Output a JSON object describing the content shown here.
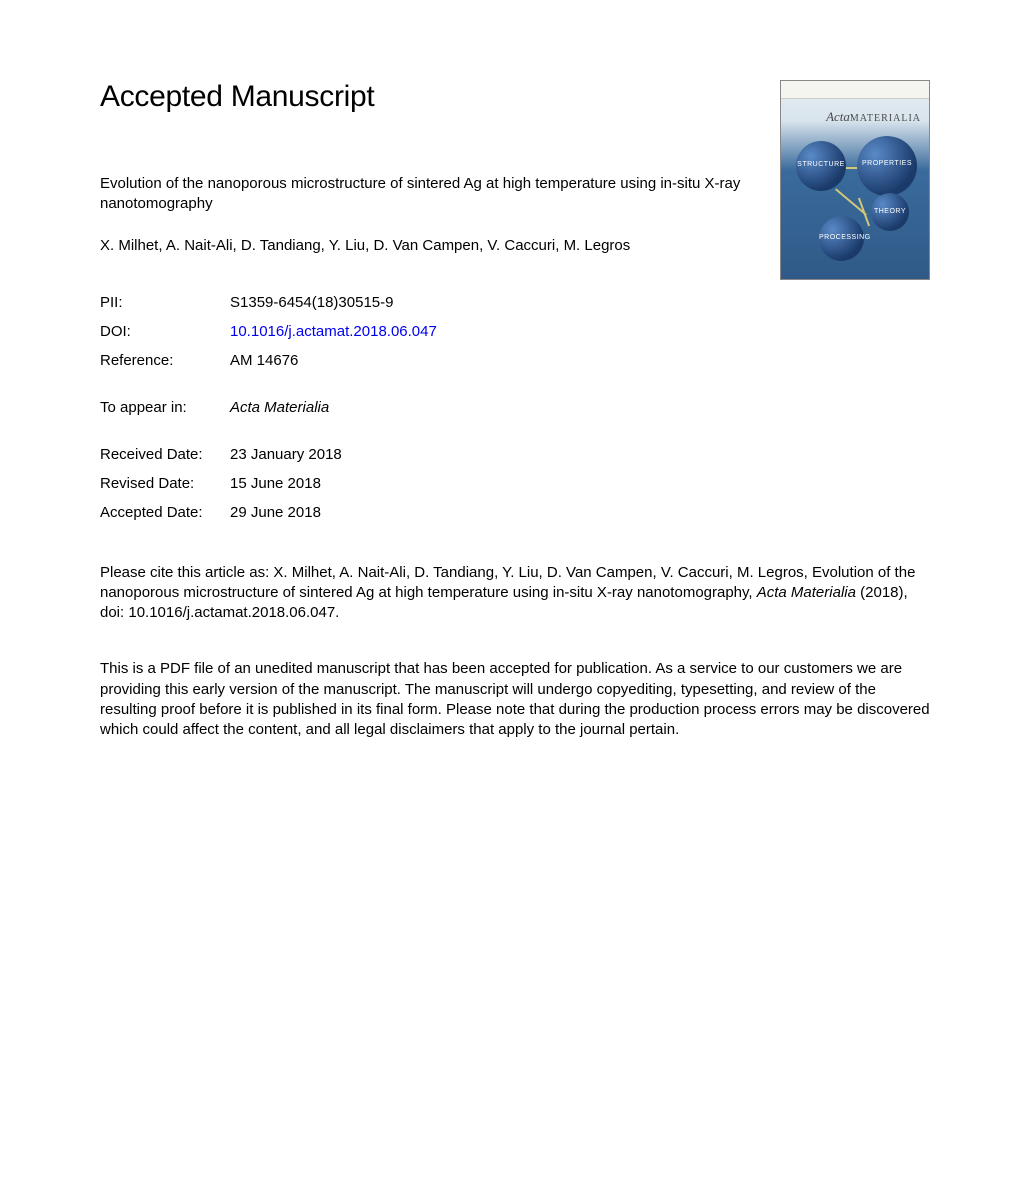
{
  "page": {
    "background_color": "#ffffff",
    "text_color": "#000000",
    "link_color": "#0000ee",
    "font_family": "Arial, Helvetica, sans-serif",
    "base_fontsize": 15
  },
  "heading": "Accepted Manuscript",
  "heading_fontsize": 30,
  "cover": {
    "journal_logo_text": "Acta",
    "journal_logo_sub": "MATERIALIA",
    "sphere_labels": [
      "STRUCTURE",
      "PROPERTIES",
      "THEORY",
      "PROCESSING"
    ],
    "gradient_top": "#e8eef2",
    "gradient_bottom": "#2f5a88",
    "sphere_color": "#1a3a6a",
    "connector_color": "#d0c878"
  },
  "article": {
    "title": "Evolution of the nanoporous microstructure of sintered Ag at high temperature using in-situ X-ray nanotomography",
    "authors": "X. Milhet, A. Nait-Ali, D. Tandiang, Y. Liu, D. Van Campen, V. Caccuri, M. Legros"
  },
  "meta": {
    "pii_label": "PII:",
    "pii_value": "S1359-6454(18)30515-9",
    "doi_label": "DOI:",
    "doi_value": "10.1016/j.actamat.2018.06.047",
    "reference_label": "Reference:",
    "reference_value": "AM 14676",
    "appear_label": "To appear in:",
    "appear_value": "Acta Materialia",
    "received_label": "Received Date:",
    "received_value": "23 January 2018",
    "revised_label": "Revised Date:",
    "revised_value": "15 June 2018",
    "accepted_label": "Accepted Date:",
    "accepted_value": "29 June 2018"
  },
  "citation": {
    "prefix": "Please cite this article as: X. Milhet, A. Nait-Ali, D. Tandiang, Y. Liu, D. Van Campen, V. Caccuri, M. Legros, Evolution of the nanoporous microstructure of sintered Ag at high temperature using in-situ X-ray nanotomography, ",
    "journal": "Acta Materialia",
    "suffix": " (2018), doi: 10.1016/j.actamat.2018.06.047."
  },
  "disclaimer": "This is a PDF file of an unedited manuscript that has been accepted for publication. As a service to our customers we are providing this early version of the manuscript. The manuscript will undergo copyediting, typesetting, and review of the resulting proof before it is published in its final form. Please note that during the production process errors may be discovered which could affect the content, and all legal disclaimers that apply to the journal pertain."
}
